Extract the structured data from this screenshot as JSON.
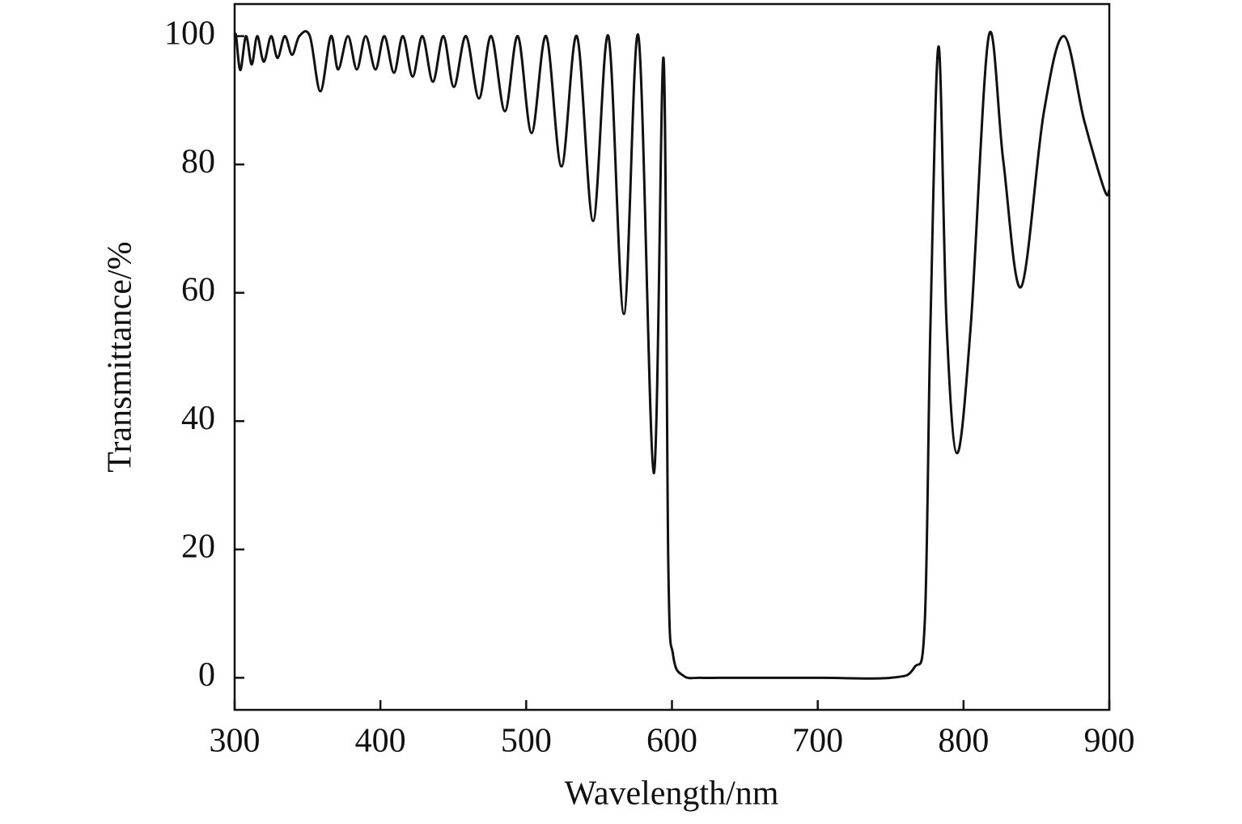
{
  "chart_data": {
    "type": "line",
    "x_label": "Wavelength/nm",
    "y_label": "Transmittance/%",
    "xlim": [
      300,
      900
    ],
    "ylim": [
      -5,
      105
    ],
    "xticks": [
      300,
      400,
      500,
      600,
      700,
      800,
      900
    ],
    "yticks": [
      0,
      20,
      40,
      60,
      80,
      100
    ],
    "grid": false,
    "series": [
      {
        "color": "#111111",
        "x": [
          300,
          301,
          303.9,
          307.8,
          311.7,
          315.5,
          320,
          325,
          329.4,
          334.4,
          339.4,
          344.4,
          351.6,
          358.8,
          366,
          371,
          377.7,
          383.8,
          389.9,
          396.6,
          402.7,
          409.3,
          415.4,
          422.1,
          428.8,
          436,
          443.2,
          450.4,
          458.7,
          467.6,
          476,
          485.4,
          494.3,
          503.7,
          513.7,
          524.2,
          534.8,
          545.9,
          556.4,
          567,
          577,
          587.5,
          594.2,
          597.5,
          600.8,
          608,
          620,
          640,
          700,
          750,
          766.2,
          773.4,
          777.3,
          782.9,
          788.4,
          795.6,
          805,
          817.3,
          827.3,
          839.5,
          855,
          868.9,
          882.8,
          896.7,
          900
        ],
        "values": [
          100,
          100,
          94.7,
          100,
          95.6,
          100,
          96,
          100,
          96.6,
          100,
          97.1,
          100,
          100,
          91.4,
          100,
          94.8,
          100,
          94.8,
          100,
          94.8,
          100,
          94.3,
          100,
          93.7,
          100,
          92.9,
          100,
          92.1,
          100,
          90.3,
          100,
          88.3,
          100,
          84.9,
          100,
          79.7,
          100,
          71.2,
          100,
          56.7,
          100,
          31.9,
          96.6,
          17.4,
          3.5,
          0.3,
          0,
          0,
          0,
          0,
          1.6,
          8.6,
          55,
          98.4,
          55,
          35,
          55,
          100,
          80.5,
          60.9,
          88,
          100,
          86.8,
          76,
          76
        ]
      }
    ]
  }
}
